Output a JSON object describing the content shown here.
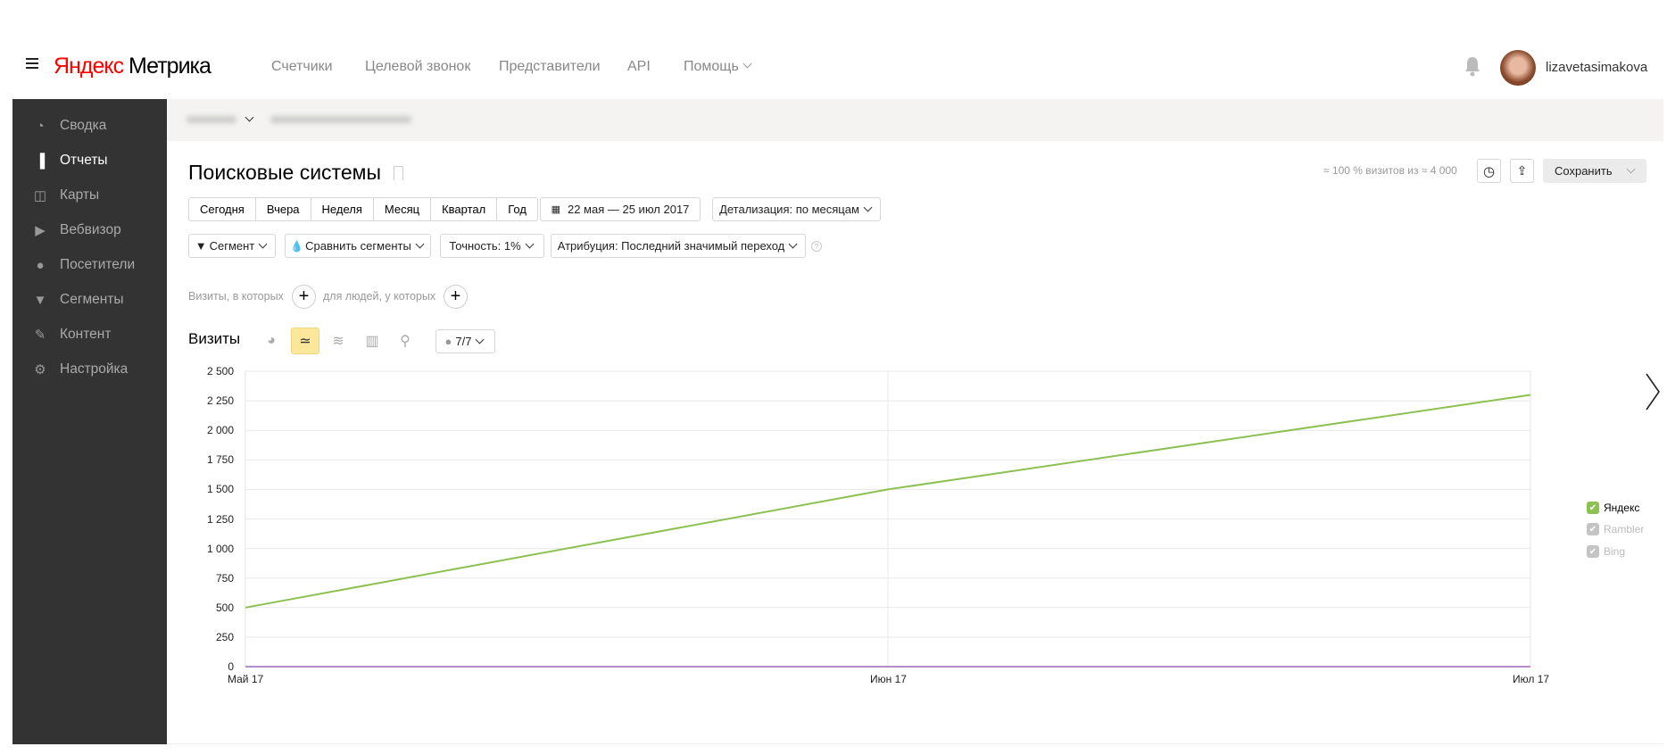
{
  "header": {
    "logo_brand": "Яндекс",
    "logo_product": "Метрика",
    "nav": [
      "Счетчики",
      "Целевой звонок",
      "Представители",
      "API",
      "Помощь"
    ],
    "username": "lizavetasimakova"
  },
  "sidebar": {
    "items": [
      {
        "label": "Сводка",
        "icon": "gauge-icon"
      },
      {
        "label": "Отчеты",
        "icon": "bar-chart-icon",
        "active": true
      },
      {
        "label": "Карты",
        "icon": "map-layout-icon"
      },
      {
        "label": "Вебвизор",
        "icon": "play-icon"
      },
      {
        "label": "Посетители",
        "icon": "person-icon"
      },
      {
        "label": "Сегменты",
        "icon": "funnel-icon"
      },
      {
        "label": "Контент",
        "icon": "pencil-icon"
      },
      {
        "label": "Настройка",
        "icon": "gear-icon"
      }
    ]
  },
  "page": {
    "title": "Поисковые системы",
    "stats": "≈ 100 % визитов из ≈ 4 000",
    "save": "Сохранить"
  },
  "periods": [
    "Сегодня",
    "Вчера",
    "Неделя",
    "Месяц",
    "Квартал",
    "Год"
  ],
  "date_range": "22 мая — 25 июл 2017",
  "detail": "Детализация: по месяцам",
  "filters": {
    "segment": "Сегмент",
    "compare": "Сравнить сегменты",
    "accuracy": "Точность: 1%",
    "attribution": "Атрибуция: Последний значимый переход"
  },
  "conditions": {
    "visits": "Визиты, в которых",
    "people": "для людей, у которых"
  },
  "chart_header": {
    "metric": "Визиты",
    "series_count": "7/7"
  },
  "colors": {
    "accent": "#fce79a",
    "yandex": "#8cc152",
    "other": "#b58ec9",
    "sidebar": "#333333"
  },
  "chart_data": {
    "type": "line",
    "categories": [
      "Май 17",
      "Июн 17",
      "Июл 17"
    ],
    "yticks": [
      "0",
      "250",
      "500",
      "750",
      "1 000",
      "1 250",
      "1 500",
      "1 750",
      "2 000",
      "2 250",
      "2 500"
    ],
    "ylim": [
      0,
      2500
    ],
    "grid": true,
    "legend_placement": "right",
    "series": [
      {
        "name": "Яндекс",
        "values": [
          500,
          1500,
          2300
        ],
        "color": "#8cc152"
      },
      {
        "name": "Rambler",
        "values": [
          0,
          0,
          0
        ],
        "color": "#b58ec9"
      },
      {
        "name": "Bing",
        "values": [
          0,
          0,
          0
        ],
        "color": "#b58ec9"
      }
    ]
  }
}
